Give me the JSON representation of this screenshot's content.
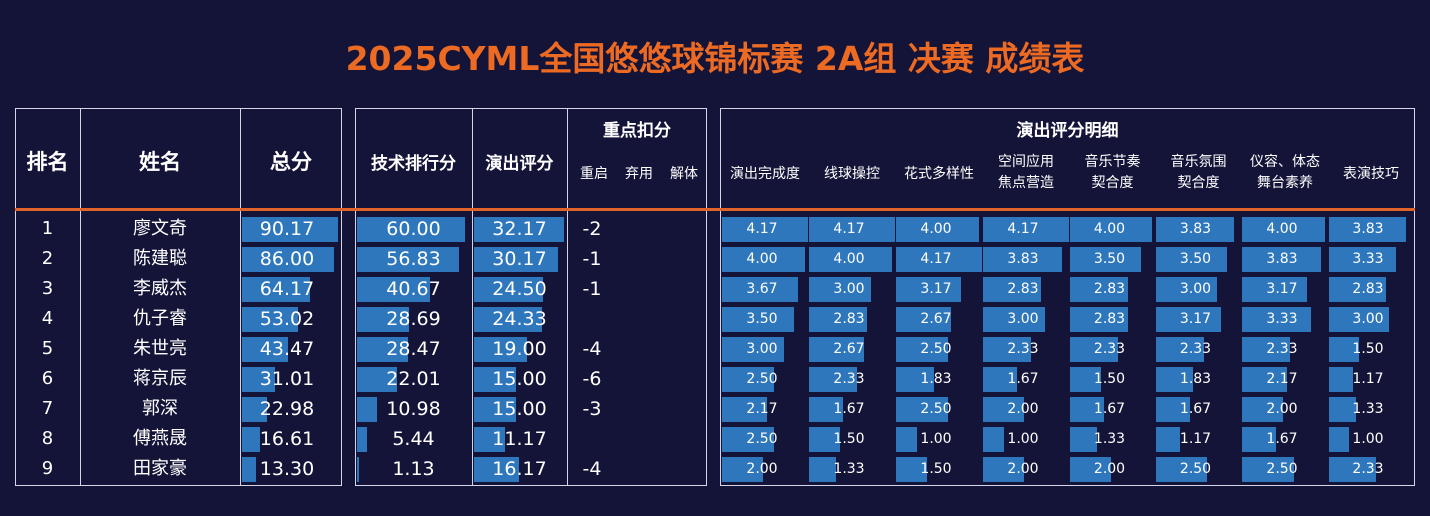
{
  "title": "2025CYML全国悠悠球锦标赛 2A组 决赛 成绩表",
  "headers": {
    "rank": "排名",
    "name": "姓名",
    "total": "总分",
    "tech": "技术排行分",
    "perf": "演出评分",
    "deduct_group": "重点扣分",
    "deduct_cols": [
      "重启",
      "弃用",
      "解体"
    ],
    "detail_group": "演出评分明细",
    "detail_cols": [
      [
        "演出完成度"
      ],
      [
        "线球操控"
      ],
      [
        "花式多样性"
      ],
      [
        "空间应用",
        "焦点营造"
      ],
      [
        "音乐节奏",
        "契合度"
      ],
      [
        "音乐氛围",
        "契合度"
      ],
      [
        "仪容、体态",
        "舞台素养"
      ],
      [
        "表演技巧"
      ]
    ]
  },
  "chart_data": {
    "type": "table",
    "title": "2025CYML全国悠悠球锦标赛 2A组 决赛 成绩表",
    "rows": [
      {
        "rank": "1",
        "name": "廖文奇",
        "total": "90.17",
        "tech": "60.00",
        "perf": "32.17",
        "deduct": "-2",
        "details": [
          "4.17",
          "4.17",
          "4.00",
          "4.17",
          "4.00",
          "3.83",
          "4.00",
          "3.83"
        ]
      },
      {
        "rank": "2",
        "name": "陈建聪",
        "total": "86.00",
        "tech": "56.83",
        "perf": "30.17",
        "deduct": "-1",
        "details": [
          "4.00",
          "4.00",
          "4.17",
          "3.83",
          "3.50",
          "3.50",
          "3.83",
          "3.33"
        ]
      },
      {
        "rank": "3",
        "name": "李威杰",
        "total": "64.17",
        "tech": "40.67",
        "perf": "24.50",
        "deduct": "-1",
        "details": [
          "3.67",
          "3.00",
          "3.17",
          "2.83",
          "2.83",
          "3.00",
          "3.17",
          "2.83"
        ]
      },
      {
        "rank": "4",
        "name": "仇子睿",
        "total": "53.02",
        "tech": "28.69",
        "perf": "24.33",
        "deduct": "",
        "details": [
          "3.50",
          "2.83",
          "2.67",
          "3.00",
          "2.83",
          "3.17",
          "3.33",
          "3.00"
        ]
      },
      {
        "rank": "5",
        "name": "朱世亮",
        "total": "43.47",
        "tech": "28.47",
        "perf": "19.00",
        "deduct": "-4",
        "details": [
          "3.00",
          "2.67",
          "2.50",
          "2.33",
          "2.33",
          "2.33",
          "2.33",
          "1.50"
        ]
      },
      {
        "rank": "6",
        "name": "蒋京辰",
        "total": "31.01",
        "tech": "22.01",
        "perf": "15.00",
        "deduct": "-6",
        "details": [
          "2.50",
          "2.33",
          "1.83",
          "1.67",
          "1.50",
          "1.83",
          "2.17",
          "1.17"
        ]
      },
      {
        "rank": "7",
        "name": "郭深",
        "total": "22.98",
        "tech": "10.98",
        "perf": "15.00",
        "deduct": "-3",
        "details": [
          "2.17",
          "1.67",
          "2.50",
          "2.00",
          "1.67",
          "1.67",
          "2.00",
          "1.33"
        ]
      },
      {
        "rank": "8",
        "name": "傅燕晟",
        "total": "16.61",
        "tech": "5.44",
        "perf": "11.17",
        "deduct": "",
        "details": [
          "2.50",
          "1.50",
          "1.00",
          "1.00",
          "1.33",
          "1.17",
          "1.67",
          "1.00"
        ]
      },
      {
        "rank": "9",
        "name": "田家豪",
        "total": "13.30",
        "tech": "1.13",
        "perf": "16.17",
        "deduct": "-4",
        "details": [
          "2.00",
          "1.33",
          "1.50",
          "2.00",
          "2.00",
          "2.50",
          "2.50",
          "2.33"
        ]
      }
    ],
    "bar_max": {
      "total": 90.17,
      "tech": 60.0,
      "perf": 32.17,
      "details": 4.17
    },
    "bar_color": "#2f77bd",
    "accent_color": "#ed6a23"
  }
}
